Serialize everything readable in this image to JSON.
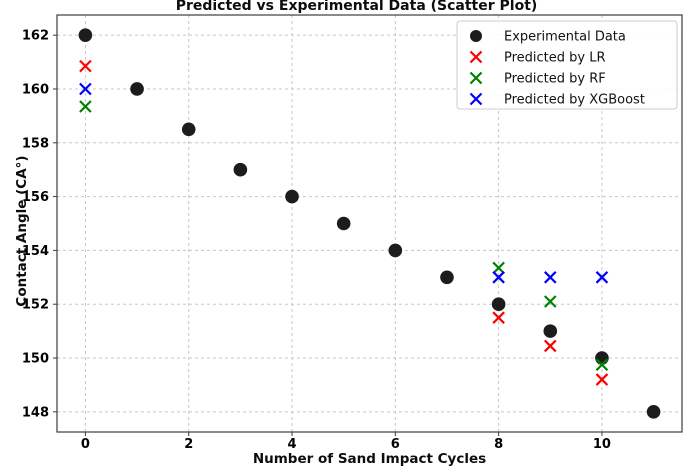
{
  "chart_data": {
    "type": "scatter",
    "title": "Predicted vs Experimental Data (Scatter Plot)",
    "xlabel": "Number of Sand Impact Cycles",
    "ylabel": "Contact Angle (CA°)",
    "xlim": [
      -0.55,
      11.55
    ],
    "ylim": [
      147.25,
      162.75
    ],
    "xticks": [
      0,
      2,
      4,
      6,
      8,
      10
    ],
    "yticks": [
      148,
      150,
      152,
      154,
      156,
      158,
      160,
      162
    ],
    "grid": true,
    "grid_style": "dashed",
    "legend_position": "upper-right",
    "colors": {
      "experimental": "#1c1c1c",
      "lr": "#ff0000",
      "rf": "#008000",
      "xgboost": "#0000ff",
      "gridline": "#c7c7c7",
      "spine": "#3c3c3c",
      "legend_border": "#cccccc",
      "legend_background": "#ffffff"
    },
    "series": [
      {
        "name": "Experimental Data",
        "marker": "circle",
        "color": "#1c1c1c",
        "x": [
          0,
          1,
          2,
          3,
          4,
          5,
          6,
          7,
          8,
          9,
          10,
          11
        ],
        "y": [
          162,
          160,
          158.5,
          157,
          156,
          155,
          154,
          153,
          152,
          151,
          150,
          148
        ]
      },
      {
        "name": "Predicted by LR",
        "marker": "x",
        "color": "#ff0000",
        "x": [
          0,
          8,
          9,
          10
        ],
        "y": [
          160.85,
          151.5,
          150.45,
          149.2
        ]
      },
      {
        "name": "Predicted by RF",
        "marker": "x",
        "color": "#008000",
        "x": [
          0,
          8,
          9,
          10
        ],
        "y": [
          159.35,
          153.35,
          152.1,
          149.75
        ]
      },
      {
        "name": "Predicted by XGBoost",
        "marker": "x",
        "color": "#0000ff",
        "x": [
          0,
          8,
          9,
          10
        ],
        "y": [
          160.0,
          153.0,
          153.0,
          153.0
        ]
      }
    ]
  }
}
